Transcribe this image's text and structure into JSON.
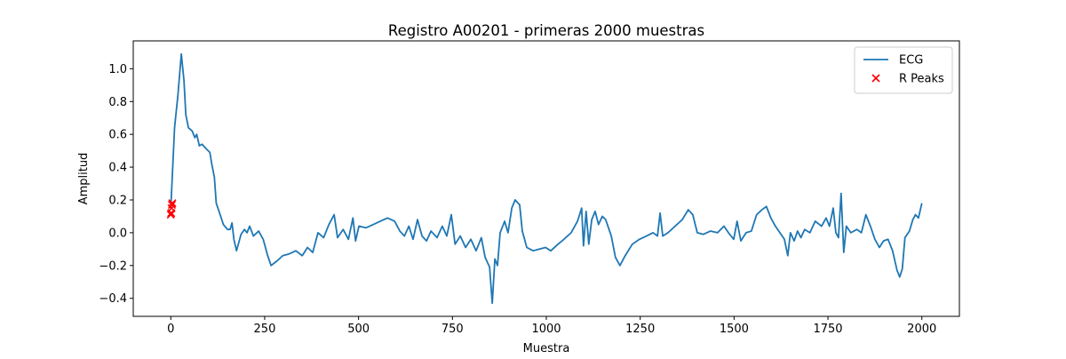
{
  "chart_data": {
    "type": "line",
    "title": "Registro A00201 - primeras 2000 muestras",
    "xlabel": "Muestra",
    "ylabel": "Amplitud",
    "xlim": [
      -100,
      2100
    ],
    "ylim": [
      -0.51,
      1.17
    ],
    "xticks": [
      0,
      250,
      500,
      750,
      1000,
      1250,
      1500,
      1750,
      2000
    ],
    "yticks": [
      {
        "value": -0.4,
        "label": "−0.4"
      },
      {
        "value": -0.2,
        "label": "−0.2"
      },
      {
        "value": 0,
        "label": "0.0"
      },
      0.2,
      0.4,
      0.6,
      0.8,
      {
        "value": 1,
        "label": "1.0"
      }
    ],
    "grid": false,
    "legend": "upper right",
    "series": [
      {
        "name": "ECG",
        "type": "line",
        "color": "#1f77b4",
        "x": [
          0,
          10,
          19,
          28,
          35,
          40,
          47,
          57,
          64,
          69,
          76,
          83,
          95,
          104,
          109,
          116,
          121,
          130,
          140,
          151,
          158,
          163,
          168,
          175,
          187,
          196,
          203,
          210,
          220,
          234,
          246,
          258,
          267,
          284,
          298,
          314,
          333,
          350,
          364,
          378,
          392,
          407,
          421,
          435,
          444,
          459,
          473,
          485,
          492,
          501,
          520,
          539,
          558,
          577,
          596,
          610,
          622,
          634,
          645,
          657,
          669,
          681,
          693,
          709,
          723,
          735,
          747,
          757,
          771,
          785,
          799,
          813,
          827,
          837,
          849,
          856,
          863,
          870,
          877,
          889,
          898,
          908,
          917,
          929,
          936,
          948,
          965,
          981,
          998,
          1012,
          1031,
          1047,
          1066,
          1083,
          1094,
          1099,
          1106,
          1113,
          1121,
          1130,
          1139,
          1149,
          1158,
          1173,
          1184,
          1196,
          1210,
          1229,
          1248,
          1267,
          1284,
          1296,
          1303,
          1310,
          1324,
          1343,
          1362,
          1378,
          1390,
          1402,
          1418,
          1437,
          1456,
          1473,
          1485,
          1499,
          1508,
          1518,
          1532,
          1546,
          1560,
          1574,
          1586,
          1598,
          1610,
          1622,
          1634,
          1643,
          1650,
          1660,
          1669,
          1678,
          1688,
          1702,
          1716,
          1733,
          1745,
          1754,
          1764,
          1771,
          1778,
          1785,
          1792,
          1799,
          1811,
          1827,
          1839,
          1851,
          1863,
          1875,
          1887,
          1898,
          1910,
          1922,
          1934,
          1941,
          1948,
          1955,
          1967,
          1976,
          1983,
          1991,
          2000
        ],
        "values": [
          0.15,
          0.64,
          0.84,
          1.09,
          0.93,
          0.72,
          0.64,
          0.62,
          0.58,
          0.6,
          0.53,
          0.54,
          0.51,
          0.49,
          0.42,
          0.34,
          0.18,
          0.12,
          0.05,
          0.02,
          0.02,
          0.06,
          -0.04,
          -0.11,
          -0.01,
          0.02,
          0.0,
          0.04,
          -0.02,
          0.01,
          -0.04,
          -0.14,
          -0.2,
          -0.17,
          -0.14,
          -0.13,
          -0.11,
          -0.14,
          -0.09,
          -0.12,
          0.0,
          -0.03,
          0.05,
          0.11,
          -0.03,
          0.02,
          -0.04,
          0.09,
          -0.05,
          0.04,
          0.03,
          0.05,
          0.07,
          0.09,
          0.07,
          0.01,
          -0.02,
          0.04,
          -0.04,
          0.08,
          -0.02,
          -0.05,
          0.01,
          -0.03,
          0.04,
          -0.02,
          0.11,
          -0.07,
          -0.02,
          -0.09,
          -0.04,
          -0.11,
          -0.03,
          -0.15,
          -0.21,
          -0.43,
          -0.16,
          -0.2,
          0.0,
          0.07,
          0.0,
          0.15,
          0.2,
          0.17,
          0.01,
          -0.09,
          -0.11,
          -0.1,
          -0.09,
          -0.11,
          -0.07,
          -0.04,
          0.0,
          0.07,
          0.15,
          -0.08,
          0.13,
          -0.07,
          0.08,
          0.13,
          0.05,
          0.1,
          0.08,
          -0.02,
          -0.15,
          -0.2,
          -0.14,
          -0.07,
          -0.04,
          -0.02,
          0.0,
          -0.02,
          0.12,
          -0.02,
          0.0,
          0.04,
          0.08,
          0.14,
          0.11,
          0.0,
          -0.01,
          0.01,
          0.0,
          0.04,
          0.0,
          -0.04,
          0.07,
          -0.05,
          0.0,
          0.01,
          0.11,
          0.14,
          0.16,
          0.09,
          0.04,
          0.0,
          -0.04,
          -0.14,
          0.0,
          -0.05,
          0.01,
          -0.03,
          0.02,
          0.0,
          0.07,
          0.04,
          0.09,
          0.04,
          0.15,
          0.0,
          -0.03,
          0.24,
          -0.12,
          0.04,
          0.0,
          0.02,
          0.0,
          0.11,
          0.04,
          -0.04,
          -0.09,
          -0.05,
          -0.04,
          -0.11,
          -0.23,
          -0.27,
          -0.22,
          -0.03,
          0.01,
          0.08,
          0.11,
          0.09,
          0.18
        ]
      },
      {
        "name": "R Peaks",
        "type": "scatter",
        "marker": "x",
        "color": "#ff0000",
        "x": [
          0,
          1,
          2,
          3,
          4
        ],
        "values": [
          0.11,
          0.12,
          0.15,
          0.17,
          0.18
        ]
      }
    ]
  }
}
